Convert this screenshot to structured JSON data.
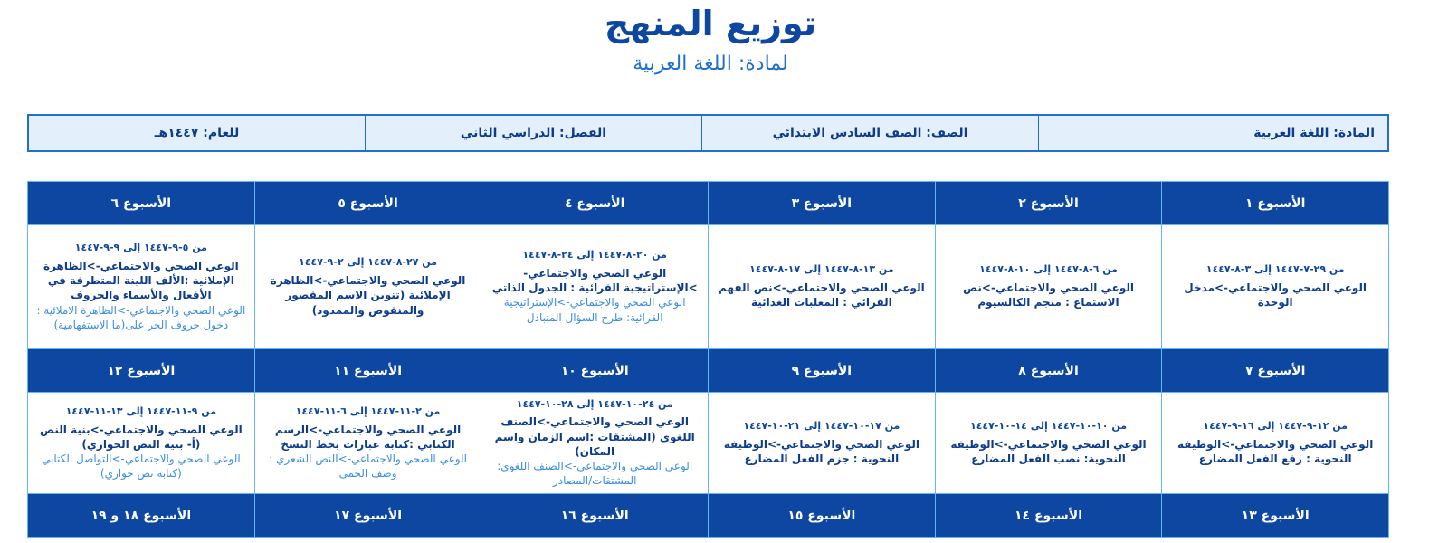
{
  "header": {
    "title": "توزيع المنهج",
    "subtitle": "لمادة: اللغة العربية"
  },
  "info": {
    "subject": "المادة: اللغة العربية",
    "grade": "الصف: الصف السادس الابتدائي",
    "term": "الفصل: الدراسي الثاني",
    "year": "للعام: ١٤٤٧هـ"
  },
  "colors": {
    "header_bg": "#0d47a1",
    "border": "#64b5f6",
    "main_text": "#0d3c8c",
    "secondary_text": "#3a8ee0",
    "info_bg": "#e3f0fc"
  },
  "weeks": [
    {
      "label": "الأسبوع ١",
      "date": "من ٢٩-٧-١٤٤٧ إلى ٣-٨-١٤٤٧",
      "main": "الوعي الصحي والاجتماعي->مدخل الوحدة",
      "extra": ""
    },
    {
      "label": "الأسبوع ٢",
      "date": "من ٦-٨-١٤٤٧ إلى ١٠-٨-١٤٤٧",
      "main": "الوعي الصحي والاجتماعي->نص الاستماع : منجم الكالسيوم",
      "extra": ""
    },
    {
      "label": "الأسبوع ٣",
      "date": "من ١٣-٨-١٤٤٧ إلى ١٧-٨-١٤٤٧",
      "main": "الوعي الصحي والاجتماعي->نص الفهم القرائي : المعلبات الغذائية",
      "extra": ""
    },
    {
      "label": "الأسبوع ٤",
      "date": "من ٢٠-٨-١٤٤٧ إلى ٢٤-٨-١٤٤٧",
      "main": "الوعي الصحي والاجتماعي->الإستراتيجية القرائية : الجدول الذاتي",
      "extra": "الوعي الصحي والاجتماعي->الإستراتيجية القرائية: طرح السؤال المتبادل"
    },
    {
      "label": "الأسبوع ٥",
      "date": "من ٢٧-٨-١٤٤٧ إلى ٢-٩-١٤٤٧",
      "main": "الوعي الصحي والاجتماعي->الظاهرة الإملائية (تنوين الاسم المقصور والمنقوص والممدود)",
      "extra": ""
    },
    {
      "label": "الأسبوع ٦",
      "date": "من ٥-٩-١٤٤٧ إلى ٩-٩-١٤٤٧",
      "main": "الوعي الصحي والاجتماعي->الظاهرة الإملائية :الألف اللينة المتطرفة في الأفعال والأسماء والحروف",
      "extra": "الوعي الصحي والاجتماعي->الظاهرة الاملائية : دخول حروف الجر على(ما الاستفهامية)"
    },
    {
      "label": "الأسبوع ٧",
      "date": "من ١٢-٩-١٤٤٧ إلى ١٦-٩-١٤٤٧",
      "main": "الوعي الصحي والاجتماعي->الوظيفة النحوية : رفع الفعل المضارع",
      "extra": ""
    },
    {
      "label": "الأسبوع ٨",
      "date": "من ١٠-١٠-١٤٤٧ إلى ١٤-١٠-١٤٤٧",
      "main": "الوعي الصحي والاجتماعي->الوظيفة النحوية: نصب الفعل المضارع",
      "extra": ""
    },
    {
      "label": "الأسبوع ٩",
      "date": "من ١٧-١٠-١٤٤٧ إلى ٢١-١٠-١٤٤٧",
      "main": "الوعي الصحي والاجتماعي->الوظيفة النحوية : جزم الفعل المضارع",
      "extra": ""
    },
    {
      "label": "الأسبوع ١٠",
      "date": "من ٢٤-١٠-١٤٤٧ إلى ٢٨-١٠-١٤٤٧",
      "main": "الوعي الصحي والاجتماعي->الصنف اللغوي (المشتقات :اسم الزمان واسم المكان)",
      "extra": "الوعي الصحي والاجتماعي->الصنف اللغوي: المشتقات/المصادر"
    },
    {
      "label": "الأسبوع ١١",
      "date": "من ٢-١١-١٤٤٧ إلى ٦-١١-١٤٤٧",
      "main": "الوعي الصحي والاجتماعي->الرسم الكتابي :كتابة عبارات بخط النسخ",
      "extra": "الوعي الصحي والاجتماعي->النص الشعري : وصف الحمى"
    },
    {
      "label": "الأسبوع ١٢",
      "date": "من ٩-١١-١٤٤٧ إلى ١٣-١١-١٤٤٧",
      "main": "الوعي الصحي والاجتماعي->بنية النص (أ- بنية النص الحواري)",
      "extra": "الوعي الصحي والاجتماعي->التواصل الكتابي (كتابة نص حواري)"
    },
    {
      "label": "الأسبوع ١٣"
    },
    {
      "label": "الأسبوع ١٤"
    },
    {
      "label": "الأسبوع ١٥"
    },
    {
      "label": "الأسبوع ١٦"
    },
    {
      "label": "الأسبوع ١٧"
    },
    {
      "label": "الأسبوع ١٨ و ١٩"
    }
  ]
}
